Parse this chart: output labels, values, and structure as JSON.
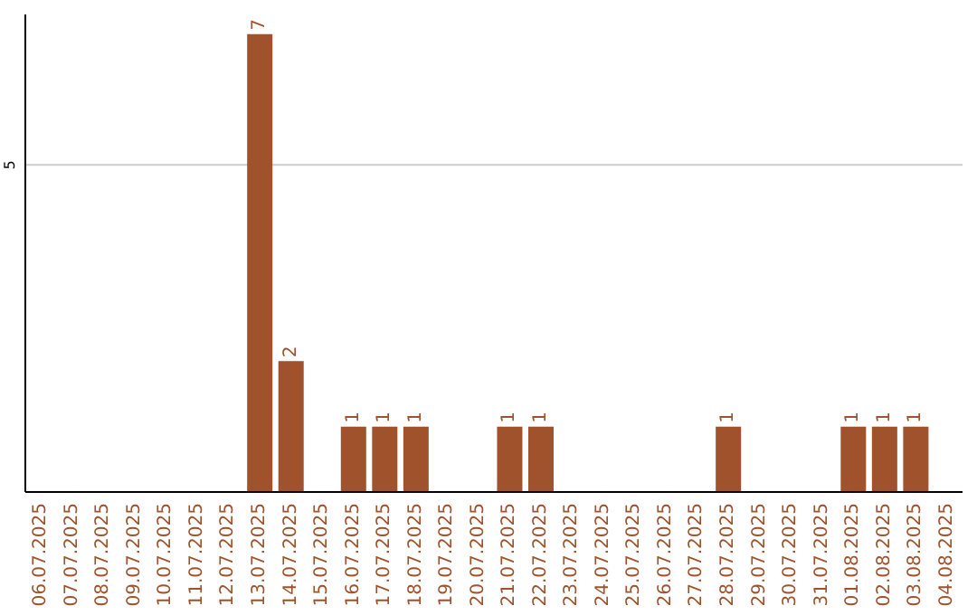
{
  "chart_data": {
    "type": "bar",
    "categories": [
      "06.07.2025",
      "07.07.2025",
      "08.07.2025",
      "09.07.2025",
      "10.07.2025",
      "11.07.2025",
      "12.07.2025",
      "13.07.2025",
      "14.07.2025",
      "15.07.2025",
      "16.07.2025",
      "17.07.2025",
      "18.07.2025",
      "19.07.2025",
      "20.07.2025",
      "21.07.2025",
      "22.07.2025",
      "23.07.2025",
      "24.07.2025",
      "25.07.2025",
      "26.07.2025",
      "27.07.2025",
      "28.07.2025",
      "29.07.2025",
      "30.07.2025",
      "31.07.2025",
      "01.08.2025",
      "02.08.2025",
      "03.08.2025",
      "04.08.2025"
    ],
    "values": [
      0,
      0,
      0,
      0,
      0,
      0,
      0,
      7,
      2,
      0,
      1,
      1,
      1,
      0,
      0,
      1,
      1,
      0,
      0,
      0,
      0,
      0,
      1,
      0,
      0,
      0,
      1,
      1,
      1,
      0
    ],
    "value_labels": [
      null,
      null,
      null,
      null,
      null,
      null,
      null,
      "7",
      "2",
      null,
      "1",
      "1",
      "1",
      null,
      null,
      "1",
      "1",
      null,
      null,
      null,
      null,
      null,
      "1",
      null,
      null,
      null,
      "1",
      "1",
      "1",
      null
    ],
    "color": "#a0522d",
    "ylim": [
      0,
      7.3
    ],
    "yticks": [
      5
    ],
    "grid": "y"
  }
}
